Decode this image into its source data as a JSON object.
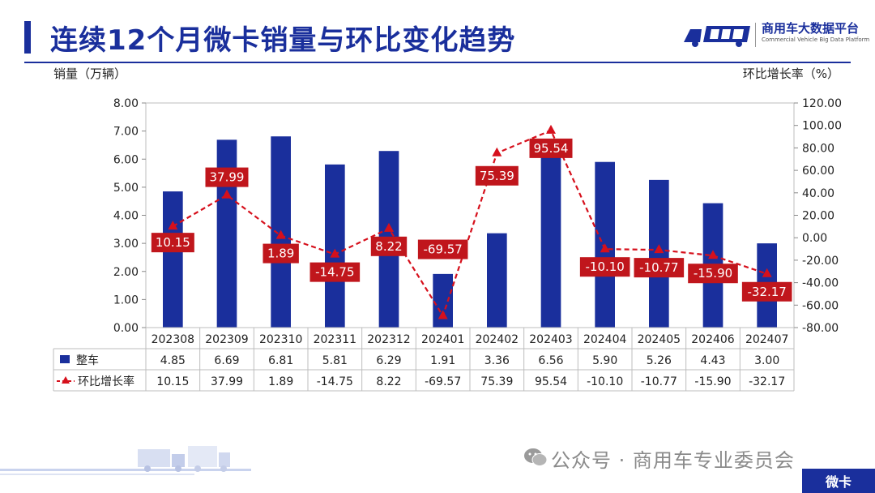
{
  "header": {
    "title": "连续12个月微卡销量与环比变化趋势",
    "logo_cn": "商用车大数据平台",
    "logo_en": "Commercial Vehicle Big Data Platform"
  },
  "footer": {
    "source": "公众号 · 商用车专业委员会",
    "tag": "微卡"
  },
  "colors": {
    "bar": "#1a2f9c",
    "line": "#d6101c",
    "label_bg": "#c0161c"
  },
  "chart_data": {
    "type": "bar",
    "categories": [
      "202308",
      "202309",
      "202310",
      "202311",
      "202312",
      "202401",
      "202402",
      "202403",
      "202404",
      "202405",
      "202406",
      "202407"
    ],
    "series": [
      {
        "name": "整车",
        "type": "bar",
        "axis": "left",
        "values": [
          4.85,
          6.69,
          6.81,
          5.81,
          6.29,
          1.91,
          3.36,
          6.56,
          5.9,
          5.26,
          4.43,
          3.0
        ]
      },
      {
        "name": "环比增长率",
        "type": "line",
        "axis": "right",
        "values": [
          10.15,
          37.99,
          1.89,
          -14.75,
          8.22,
          -69.57,
          75.39,
          95.54,
          -10.1,
          -10.77,
          -15.9,
          -32.17
        ]
      }
    ],
    "ylabel_left": "销量（万辆）",
    "ylabel_right": "环比增长率（%）",
    "ylim_left": [
      0,
      8
    ],
    "ylim_right": [
      -80,
      120
    ],
    "yticks_left": [
      "0.00",
      "1.00",
      "2.00",
      "3.00",
      "4.00",
      "5.00",
      "6.00",
      "7.00",
      "8.00"
    ],
    "yticks_right": [
      "-80.00",
      "-60.00",
      "-40.00",
      "-20.00",
      "0.00",
      "20.00",
      "40.00",
      "60.00",
      "80.00",
      "100.00",
      "120.00"
    ],
    "bar_table_labels": [
      "4.85",
      "6.69",
      "6.81",
      "5.81",
      "6.29",
      "1.91",
      "3.36",
      "6.56",
      "5.90",
      "5.26",
      "4.43",
      "3.00"
    ],
    "line_labels": [
      "10.15",
      "37.99",
      "1.89",
      "-14.75",
      "8.22",
      "-69.57",
      "75.39",
      "95.54",
      "-10.10",
      "-10.77",
      "-15.90",
      "-32.17"
    ],
    "data_table": true
  }
}
